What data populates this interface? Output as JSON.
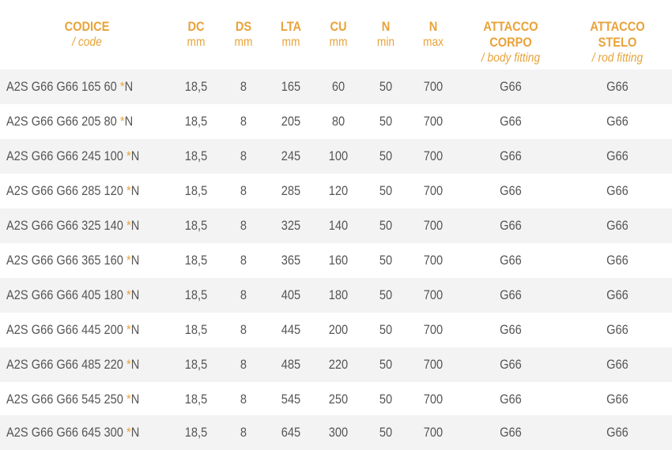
{
  "headers": [
    {
      "key": "codice",
      "line1": "CODICE",
      "line2": "/ code",
      "italic": true
    },
    {
      "key": "dc",
      "line1": "DC",
      "line2": "mm",
      "italic": false
    },
    {
      "key": "ds",
      "line1": "DS",
      "line2": "mm",
      "italic": false
    },
    {
      "key": "lta",
      "line1": "LTA",
      "line2": "mm",
      "italic": false
    },
    {
      "key": "cu",
      "line1": "CU",
      "line2": "mm",
      "italic": false
    },
    {
      "key": "nmin",
      "line1": "N",
      "line2": "min",
      "italic": false
    },
    {
      "key": "nmax",
      "line1": "N",
      "line2": "max",
      "italic": false
    },
    {
      "key": "body",
      "line1": "ATTACCO CORPO",
      "line2": "/ body fitting",
      "italic": true
    },
    {
      "key": "rod",
      "line1": "ATTACCO STELO",
      "line2": "/ rod fitting",
      "italic": true
    }
  ],
  "rows": [
    {
      "code": "A2S G66 G66 165 60 ",
      "star": "*",
      "suffix": "N",
      "dc": "18,5",
      "ds": "8",
      "lta": "165",
      "cu": "60",
      "nmin": "50",
      "nmax": "700",
      "body": "G66",
      "rod": "G66"
    },
    {
      "code": "A2S G66 G66 205 80 ",
      "star": "*",
      "suffix": "N",
      "dc": "18,5",
      "ds": "8",
      "lta": "205",
      "cu": "80",
      "nmin": "50",
      "nmax": "700",
      "body": "G66",
      "rod": "G66"
    },
    {
      "code": "A2S G66 G66 245 100 ",
      "star": "*",
      "suffix": "N",
      "dc": "18,5",
      "ds": "8",
      "lta": "245",
      "cu": "100",
      "nmin": "50",
      "nmax": "700",
      "body": "G66",
      "rod": "G66"
    },
    {
      "code": "A2S G66 G66 285 120 ",
      "star": "*",
      "suffix": "N",
      "dc": "18,5",
      "ds": "8",
      "lta": "285",
      "cu": "120",
      "nmin": "50",
      "nmax": "700",
      "body": "G66",
      "rod": "G66"
    },
    {
      "code": "A2S G66 G66 325 140 ",
      "star": "*",
      "suffix": "N",
      "dc": "18,5",
      "ds": "8",
      "lta": "325",
      "cu": "140",
      "nmin": "50",
      "nmax": "700",
      "body": "G66",
      "rod": "G66"
    },
    {
      "code": "A2S G66 G66 365 160 ",
      "star": "*",
      "suffix": "N",
      "dc": "18,5",
      "ds": "8",
      "lta": "365",
      "cu": "160",
      "nmin": "50",
      "nmax": "700",
      "body": "G66",
      "rod": "G66"
    },
    {
      "code": "A2S G66 G66 405 180 ",
      "star": "*",
      "suffix": "N",
      "dc": "18,5",
      "ds": "8",
      "lta": "405",
      "cu": "180",
      "nmin": "50",
      "nmax": "700",
      "body": "G66",
      "rod": "G66"
    },
    {
      "code": "A2S G66 G66 445 200 ",
      "star": "*",
      "suffix": "N",
      "dc": "18,5",
      "ds": "8",
      "lta": "445",
      "cu": "200",
      "nmin": "50",
      "nmax": "700",
      "body": "G66",
      "rod": "G66"
    },
    {
      "code": "A2S G66 G66 485 220 ",
      "star": "*",
      "suffix": "N",
      "dc": "18,5",
      "ds": "8",
      "lta": "485",
      "cu": "220",
      "nmin": "50",
      "nmax": "700",
      "body": "G66",
      "rod": "G66"
    },
    {
      "code": "A2S G66 G66 545 250 ",
      "star": "*",
      "suffix": "N",
      "dc": "18,5",
      "ds": "8",
      "lta": "545",
      "cu": "250",
      "nmin": "50",
      "nmax": "700",
      "body": "G66",
      "rod": "G66"
    },
    {
      "code": "A2S G66 G66 645 300 ",
      "star": "*",
      "suffix": "N",
      "dc": "18,5",
      "ds": "8",
      "lta": "645",
      "cu": "300",
      "nmin": "50",
      "nmax": "700",
      "body": "G66",
      "rod": "G66"
    }
  ],
  "colors": {
    "accent": "#e8a33a",
    "text": "#555555",
    "row_shade": "#f3f3f3",
    "background": "#ffffff"
  }
}
